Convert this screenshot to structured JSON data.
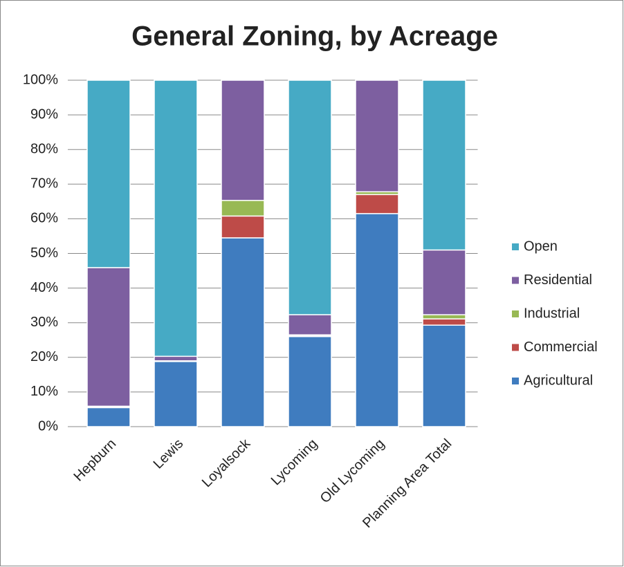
{
  "chart_data": {
    "type": "stacked_bar",
    "title": "General Zoning, by Acreage",
    "categories": [
      "Hepburn",
      "Lewis",
      "Loyalsock",
      "Lycoming",
      "Old Lycoming",
      "Planning Area Total"
    ],
    "series": [
      {
        "name": "Agricultural",
        "color": "#3f7cbf",
        "values": [
          5.5,
          18.8,
          54.5,
          26,
          61.5,
          29.3
        ]
      },
      {
        "name": "Commercial",
        "color": "#be4b48",
        "values": [
          0.3,
          0.1,
          6.3,
          0.3,
          5.5,
          1.8
        ]
      },
      {
        "name": "Industrial",
        "color": "#98b954",
        "values": [
          0.1,
          0.1,
          4.5,
          0.2,
          0.8,
          1.2
        ]
      },
      {
        "name": "Residential",
        "color": "#7d5fa0",
        "values": [
          40,
          1.3,
          34.7,
          5.8,
          32.2,
          18.7
        ]
      },
      {
        "name": "Open",
        "color": "#46aac5",
        "values": [
          54.1,
          79.7,
          0,
          67.7,
          0,
          49
        ]
      }
    ],
    "ylim": [
      0,
      100
    ],
    "yticks": [
      {
        "value": 0,
        "label": "0%"
      },
      {
        "value": 10,
        "label": "10%"
      },
      {
        "value": 20,
        "label": "20%"
      },
      {
        "value": 30,
        "label": "30%"
      },
      {
        "value": 40,
        "label": "40%"
      },
      {
        "value": 50,
        "label": "50%"
      },
      {
        "value": 60,
        "label": "60%"
      },
      {
        "value": 70,
        "label": "70%"
      },
      {
        "value": 80,
        "label": "80%"
      },
      {
        "value": 90,
        "label": "90%"
      },
      {
        "value": 100,
        "label": "100%"
      }
    ],
    "grid": true,
    "legend": "right"
  }
}
